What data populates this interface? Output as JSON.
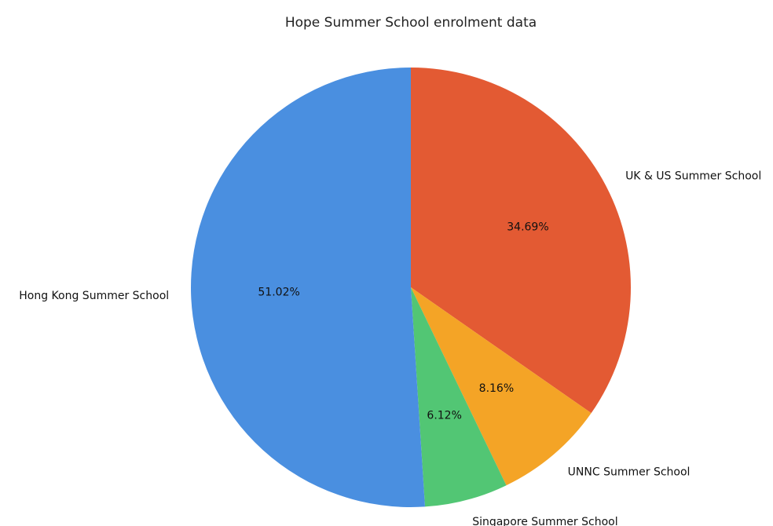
{
  "chart_data": {
    "type": "pie",
    "title": "Hope Summer School enrolment data",
    "slices": [
      {
        "label": "UK & US Summer School",
        "value": 34.69,
        "pct_label": "34.69%",
        "color": "#e35a33"
      },
      {
        "label": "UNNC Summer School",
        "value": 8.16,
        "pct_label": "8.16%",
        "color": "#f4a426"
      },
      {
        "label": "Singapore Summer School",
        "value": 6.12,
        "pct_label": "6.12%",
        "color": "#52c674"
      },
      {
        "label": "Hong Kong Summer School",
        "value": 51.02,
        "pct_label": "51.02%",
        "color": "#4a8fe0"
      }
    ],
    "start_angle": "12 o'clock",
    "direction": "clockwise",
    "legend": "none"
  }
}
